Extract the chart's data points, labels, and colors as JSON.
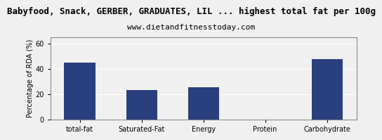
{
  "title": "Babyfood, Snack, GERBER, GRADUATES, LIL ... highest total fat per 100g",
  "subtitle": "www.dietandfitnesstoday.com",
  "categories": [
    "total-fat",
    "Saturated-Fat",
    "Energy",
    "Protein",
    "Carbohydrate"
  ],
  "values": [
    45,
    23.5,
    25.5,
    0,
    47.5
  ],
  "bar_color": "#2A3F7E",
  "ylabel": "Percentage of RDA (%)",
  "ylim": [
    0,
    65
  ],
  "yticks": [
    0,
    20,
    40,
    60
  ],
  "title_fontsize": 9,
  "subtitle_fontsize": 8,
  "ylabel_fontsize": 7,
  "tick_fontsize": 7,
  "background_color": "#f0f0f0",
  "plot_background": "#f0f0f0"
}
